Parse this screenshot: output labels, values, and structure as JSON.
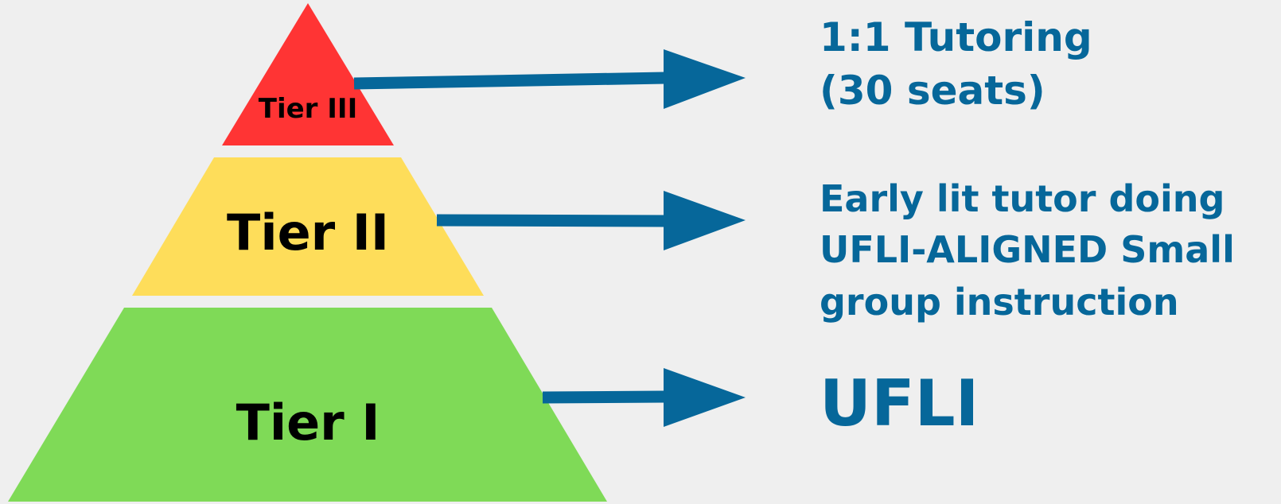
{
  "tiers": [
    {
      "label": "Tier III",
      "description": [
        "1:1 Tutoring",
        "(30 seats)"
      ]
    },
    {
      "label": "Tier II",
      "description": [
        "Early lit tutor doing",
        "UFLI-ALIGNED Small",
        "group instruction"
      ]
    },
    {
      "label": "Tier I",
      "description": [
        "UFLI"
      ]
    }
  ]
}
